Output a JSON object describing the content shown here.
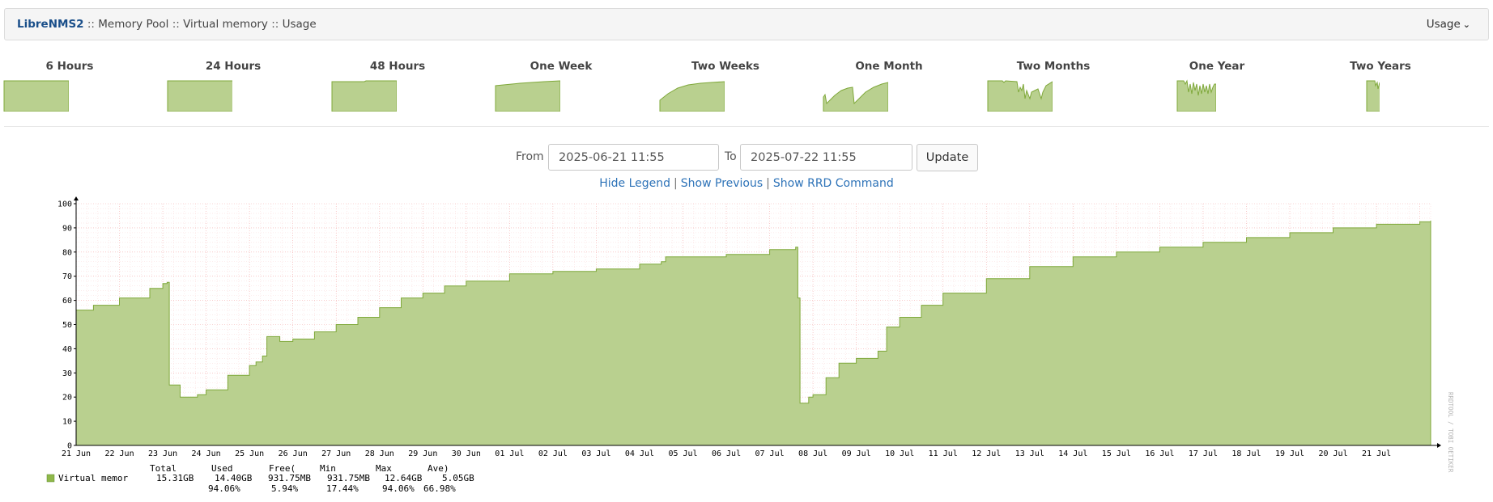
{
  "header": {
    "hostname": "LibreNMS2",
    "separator": "::",
    "crumbs": [
      "Memory Pool",
      "Virtual memory",
      "Usage"
    ],
    "dropdown_label": "Usage"
  },
  "thumbnails": [
    {
      "label": "6 Hours"
    },
    {
      "label": "24 Hours"
    },
    {
      "label": "48 Hours"
    },
    {
      "label": "One Week"
    },
    {
      "label": "Two Weeks"
    },
    {
      "label": "One Month"
    },
    {
      "label": "Two Months"
    },
    {
      "label": "One Year"
    },
    {
      "label": "Two Years"
    }
  ],
  "range": {
    "from_label": "From",
    "from_value": "2025-06-21 11:55",
    "to_label": "To",
    "to_value": "2025-07-22 11:55",
    "update_label": "Update"
  },
  "links": {
    "hide_legend": "Hide Legend",
    "show_previous": "Show Previous",
    "show_rrd_command": "Show RRD Command",
    "separator": "|"
  },
  "colors": {
    "area_fill": "#b9d08f",
    "area_line": "#7fa83a",
    "legend_swatch": "#8fb84a",
    "grid_major": "#f4a9a9",
    "grid_minor": "#fbdede",
    "link": "#2e73b8",
    "host": "#1a4f8a"
  },
  "watermark": "RRDTOOL / TOBI OETIKER",
  "legend": {
    "headers": [
      "Total",
      "Used",
      "Free(",
      "Min",
      "Max",
      "Ave)"
    ],
    "series_label": "Virtual memor",
    "row1": [
      "15.31GB",
      "14.40GB",
      "931.75MB",
      "931.75MB",
      "12.64GB",
      "5.05GB"
    ],
    "row2": [
      "94.06%",
      "5.94%",
      "17.44%",
      "94.06%",
      "66.98%"
    ]
  },
  "chart_data": {
    "type": "area",
    "series": [
      {
        "name": "Virtual memor",
        "unit": "%"
      }
    ],
    "ylim": [
      0,
      100
    ],
    "yticks": [
      0,
      10,
      20,
      30,
      40,
      50,
      60,
      70,
      80,
      90,
      100
    ],
    "xticks": [
      "21 Jun",
      "22 Jun",
      "23 Jun",
      "24 Jun",
      "25 Jun",
      "26 Jun",
      "27 Jun",
      "28 Jun",
      "29 Jun",
      "30 Jun",
      "01 Jul",
      "02 Jul",
      "03 Jul",
      "04 Jul",
      "05 Jul",
      "06 Jul",
      "07 Jul",
      "08 Jul",
      "09 Jul",
      "10 Jul",
      "11 Jul",
      "12 Jul",
      "13 Jul",
      "14 Jul",
      "15 Jul",
      "16 Jul",
      "17 Jul",
      "18 Jul",
      "19 Jul",
      "20 Jul",
      "21 Jul"
    ],
    "x_days": [
      0,
      0.4,
      1.0,
      1.7,
      2.0,
      2.1,
      2.15,
      2.4,
      2.8,
      3.0,
      3.5,
      4.0,
      4.15,
      4.3,
      4.4,
      4.7,
      5.0,
      5.5,
      6.0,
      6.5,
      7.0,
      7.5,
      8.0,
      8.5,
      9.0,
      10.0,
      11.0,
      12.0,
      13.0,
      13.5,
      13.6,
      14.0,
      15.0,
      16.0,
      16.6,
      16.65,
      16.7,
      16.9,
      17.0,
      17.3,
      17.6,
      18.0,
      18.5,
      18.7,
      19.0,
      19.5,
      20.0,
      21.0,
      22.0,
      23.0,
      24.0,
      25.0,
      26.0,
      27.0,
      28.0,
      29.0,
      30.0,
      31.0,
      31.25
    ],
    "y": [
      56,
      58,
      61,
      65,
      67,
      67.5,
      25,
      20,
      21,
      23,
      29,
      33,
      34.5,
      37,
      45,
      43,
      44,
      47,
      50,
      53,
      57,
      61,
      63,
      66,
      68,
      71,
      72,
      73,
      75,
      76,
      78,
      78,
      79,
      81,
      82,
      61,
      17.5,
      20,
      21,
      28,
      34,
      36,
      39,
      49,
      53,
      58,
      63,
      69,
      74,
      78,
      80,
      82,
      84,
      86,
      88,
      90,
      91.5,
      92.5,
      93
    ]
  }
}
